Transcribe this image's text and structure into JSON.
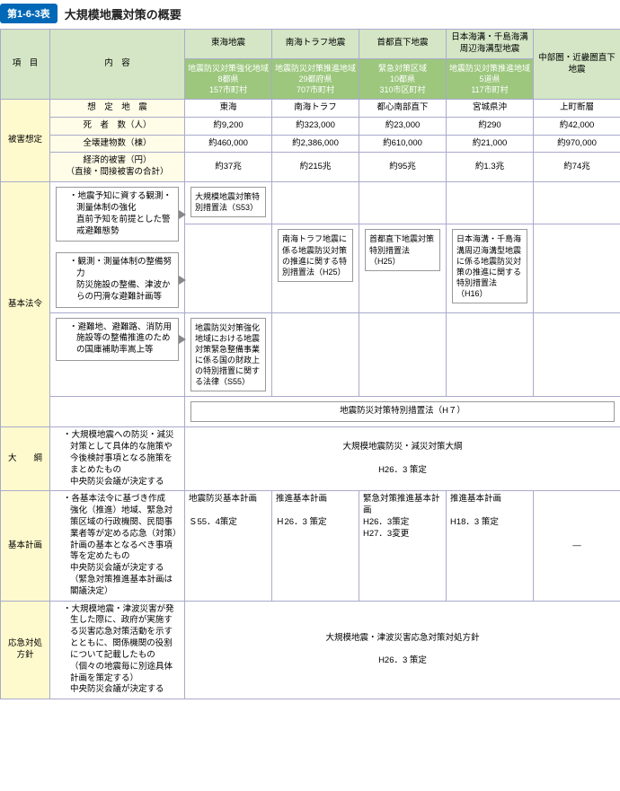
{
  "title": {
    "badge": "第1-6-3表",
    "text": "大規模地震対策の概要"
  },
  "colHead": {
    "item": "項　目",
    "content": "内　容",
    "cols": [
      "東海地震",
      "南海トラフ地震",
      "首都直下地震",
      "日本海溝・千島海溝周辺海溝型地震",
      "中部圏・近畿圏直下地震"
    ],
    "sub": [
      "地震防災対策強化地域\n8都県\n157市町村",
      "地震防災対策推進地域\n29都府県\n707市町村",
      "緊急対策区域\n10都県\n310市区町村",
      "地震防災対策推進地域\n5道県\n117市町村"
    ]
  },
  "rows": {
    "damage": {
      "label": "被害想定",
      "sub": [
        {
          "h": "想　定　地　震",
          "v": [
            "東海",
            "南海トラフ",
            "都心南部直下",
            "宮城県沖",
            "上町断層"
          ]
        },
        {
          "h": "死　者　数（人）",
          "v": [
            "約9,200",
            "約323,000",
            "約23,000",
            "約290",
            "約42,000"
          ]
        },
        {
          "h": "全壊建物数（棟）",
          "v": [
            "約460,000",
            "約2,386,000",
            "約610,000",
            "約21,000",
            "約970,000"
          ]
        },
        {
          "h": "経済的被害（円）\n（直接・間接被害の合計）",
          "v": [
            "約37兆",
            "約215兆",
            "約95兆",
            "約1.3兆",
            "約74兆"
          ]
        }
      ]
    },
    "basiclaw": {
      "label": "基本法令",
      "bullets": [
        "地震予知に資する観測・測量体制の強化\n直前予知を前提とした警戒避難態勢",
        "観測・測量体制の整備努力\n防災施設の整備、津波からの円滑な避難計画等",
        "避難地、避難路、消防用施設等の整備推進のための国庫補助率嵩上等"
      ],
      "laws": {
        "tokai1": "大規模地震対策特別措置法（S53）",
        "nankai": "南海トラフ地震に係る地震防災対策の推進に関する特別措置法（H25）",
        "shuto": "首都直下地震対策特別措置法（H25）",
        "nihonkaiko": "日本海溝・千島海溝周辺海溝型地震に係る地震防災対策の推進に関する特別措置法（H16）",
        "tokai2": "地震防災対策強化地域における地震対策緊急整備事業に係る国の財政上の特別措置に関する法律（S55）",
        "h7": "地震防災対策特別措置法（H７）"
      }
    },
    "outline": {
      "label": "大　　綱",
      "bullets": "大規模地震への防災・減災対策として具体的な施策や今後検討事項となる施策をまとめたもの\n中央防災会議が決定する",
      "body": "大規模地震防災・減災対策大綱\n\nH26．3 策定"
    },
    "basicplan": {
      "label": "基本計画",
      "bullets": "各基本法令に基づき作成\n強化（推進）地域、緊急対策区域の行政機関、民間事業者等が定める応急（対策）計画の基本となるべき事項等を定めたもの\n中央防災会議が決定する\n（緊急対策推進基本計画は閣議決定）",
      "v": [
        "地震防災基本計画\n\nＳ55．4策定",
        "推進基本計画\n\nＨ26．3 策定",
        "緊急対策推進基本計画\nH26．3策定\nH27．3変更",
        "推進基本計画\n\nH18．3 策定",
        "—"
      ]
    },
    "emergency": {
      "label": "応急対処方針",
      "bullets": "大規模地震・津波災害が発生した際に、政府が実施する災害応急対策活動を示すとともに、関係機関の役割について記載したもの（個々の地震毎に別途具体計画を策定する）\n中央防災会議が決定する",
      "body": "大規模地震・津波災害応急対策対処方針\n\nH26．3 策定"
    }
  }
}
